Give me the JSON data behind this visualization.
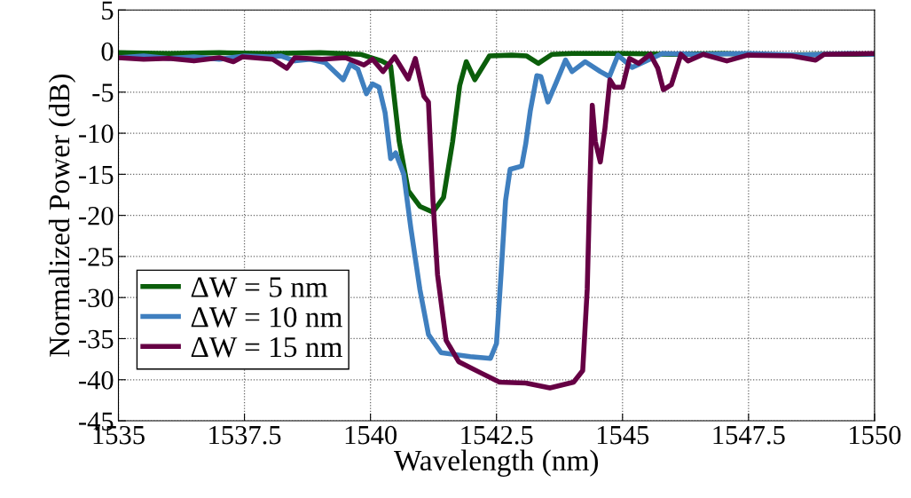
{
  "chart_data": {
    "type": "line",
    "xlabel": "Wavelength (nm)",
    "ylabel": "Normalized Power (dB)",
    "xlim": [
      1535,
      1550
    ],
    "ylim": [
      -45,
      5
    ],
    "xticks": [
      1535,
      1537.5,
      1540,
      1542.5,
      1545,
      1547.5,
      1550
    ],
    "yticks": [
      -45,
      -40,
      -35,
      -30,
      -25,
      -20,
      -15,
      -10,
      -5,
      0,
      5
    ],
    "grid": true,
    "legend": "bottom left",
    "line_style": "solid",
    "marker": "none",
    "series": [
      {
        "name": "ΔW = 5 nm",
        "color": "#0b5e0b",
        "x": [
          1535,
          1536,
          1537,
          1538,
          1539,
          1539.8,
          1540.22,
          1540.4,
          1540.57,
          1540.75,
          1540.98,
          1541.24,
          1541.45,
          1541.63,
          1541.77,
          1541.9,
          1542.07,
          1542.36,
          1542.8,
          1543.1,
          1543.33,
          1543.6,
          1544,
          1545,
          1546,
          1547,
          1548,
          1549,
          1550
        ],
        "values": [
          -0.2,
          -0.3,
          -0.2,
          -0.3,
          -0.2,
          -0.4,
          -1.2,
          -1.8,
          -11,
          -17,
          -18.9,
          -19.6,
          -17.8,
          -11,
          -4.2,
          -1.3,
          -3.5,
          -0.6,
          -0.5,
          -0.6,
          -1.5,
          -0.4,
          -0.3,
          -0.3,
          -0.4,
          -0.3,
          -0.5,
          -0.4,
          -0.4
        ]
      },
      {
        "name": "ΔW = 10 nm",
        "color": "#3f7fbf",
        "x": [
          1535,
          1535.5,
          1536,
          1536.5,
          1537,
          1537.5,
          1538,
          1538.23,
          1538.5,
          1538.8,
          1539.1,
          1539.46,
          1539.6,
          1539.75,
          1539.92,
          1540.04,
          1540.17,
          1540.29,
          1540.4,
          1540.5,
          1540.66,
          1540.8,
          1540.98,
          1541.15,
          1541.4,
          1541.98,
          1542.38,
          1542.5,
          1542.59,
          1542.68,
          1542.77,
          1543.0,
          1543.08,
          1543.17,
          1543.3,
          1543.38,
          1543.52,
          1543.68,
          1543.87,
          1544.0,
          1544.26,
          1544.56,
          1544.74,
          1544.91,
          1545.19,
          1545.79,
          1546.5,
          1547.5,
          1548.5,
          1549.5,
          1550
        ],
        "values": [
          -0.8,
          -0.6,
          -0.9,
          -0.7,
          -1,
          -0.6,
          -0.7,
          -0.6,
          -1.2,
          -1,
          -1.4,
          -3.5,
          -1.6,
          -2.2,
          -5.2,
          -4,
          -4.4,
          -7.5,
          -13.1,
          -12.4,
          -15,
          -21.5,
          -29,
          -34.5,
          -36.7,
          -37.2,
          -37.4,
          -35.6,
          -27.2,
          -18.2,
          -14.4,
          -14,
          -11.3,
          -7.3,
          -3,
          -3.1,
          -6.2,
          -3.9,
          -1.1,
          -2.5,
          -1.3,
          -2.5,
          -3.1,
          -0.5,
          -2,
          -0.3,
          -0.4,
          -0.3,
          -0.5,
          -0.3,
          -0.4
        ]
      },
      {
        "name": "ΔW = 15 nm",
        "color": "#660044",
        "x": [
          1535,
          1535.5,
          1536,
          1536.5,
          1537,
          1537.28,
          1537.46,
          1538.06,
          1538.34,
          1538.5,
          1539.04,
          1539.5,
          1539.87,
          1540.04,
          1540.25,
          1540.48,
          1540.75,
          1540.89,
          1541.06,
          1541.15,
          1541.24,
          1541.33,
          1541.5,
          1541.75,
          1542.2,
          1542.56,
          1543.08,
          1543.56,
          1544.03,
          1544.21,
          1544.3,
          1544.35,
          1544.4,
          1544.46,
          1544.56,
          1544.65,
          1544.75,
          1544.84,
          1545.0,
          1545.14,
          1545.32,
          1545.55,
          1545.7,
          1545.81,
          1545.97,
          1546.16,
          1546.3,
          1546.6,
          1547.07,
          1547.48,
          1548.36,
          1548.83,
          1549.0,
          1550
        ],
        "values": [
          -0.8,
          -1,
          -0.9,
          -1.2,
          -0.8,
          -1.3,
          -0.7,
          -1,
          -2.1,
          -0.8,
          -1,
          -0.8,
          -1.7,
          -1,
          -2.5,
          -0.7,
          -3.4,
          -0.9,
          -5.5,
          -6.2,
          -18.2,
          -27.2,
          -35.2,
          -37.8,
          -39.2,
          -40.3,
          -40.4,
          -41,
          -40.3,
          -38.9,
          -29,
          -17,
          -6.6,
          -11,
          -13.5,
          -9.5,
          -3.5,
          -4.4,
          -4.4,
          -0.9,
          -1.5,
          -0.4,
          -2.1,
          -4.7,
          -4.1,
          -0.4,
          -1.2,
          -0.4,
          -1.2,
          -0.5,
          -0.6,
          -1.1,
          -0.4,
          -0.3
        ]
      }
    ]
  }
}
